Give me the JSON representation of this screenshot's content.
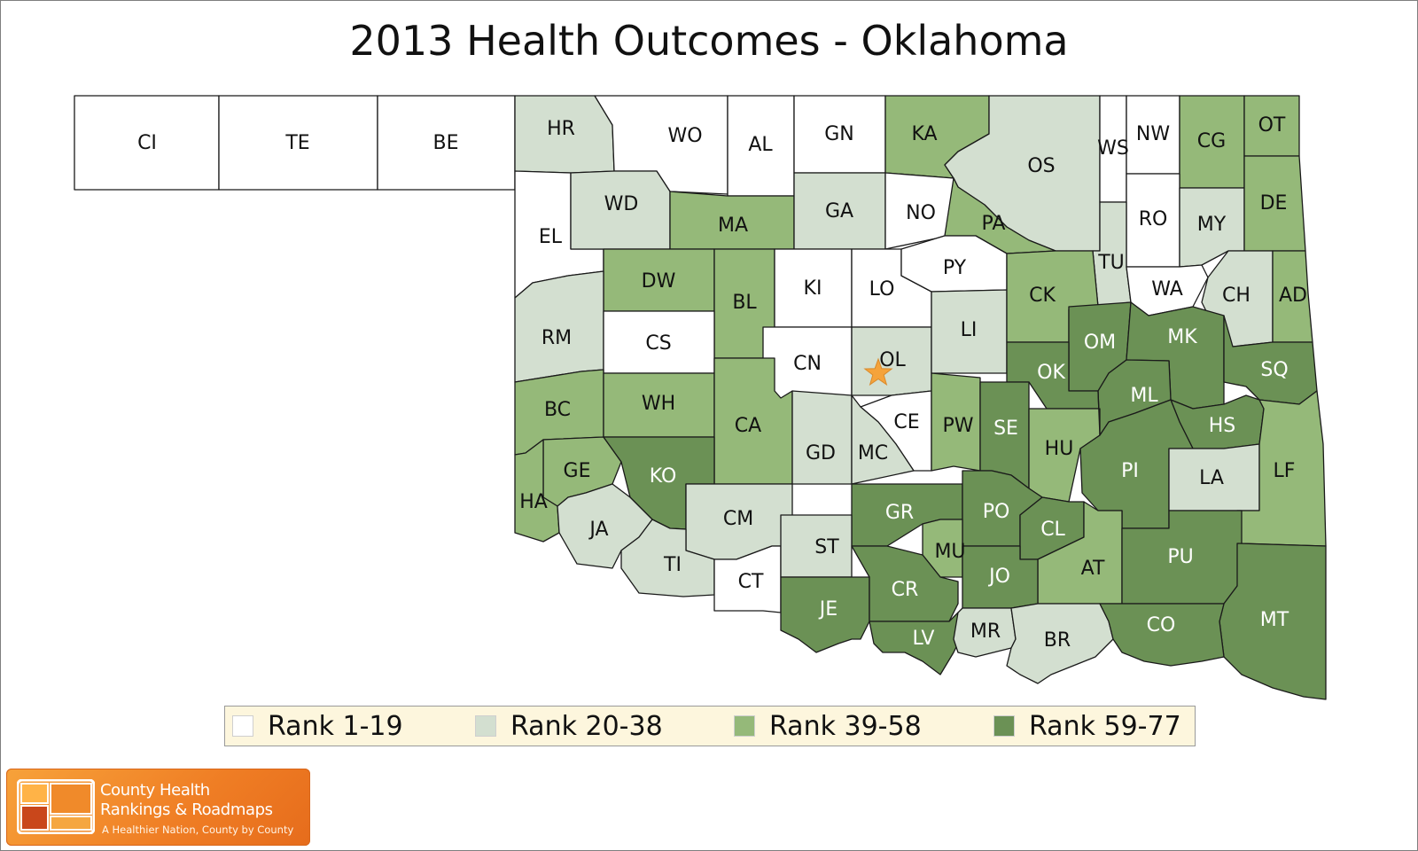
{
  "title": "2013 Health Outcomes - Oklahoma",
  "colors": {
    "rank_1_19": "#ffffff",
    "rank_20_38": "#d3dfd0",
    "rank_39_58": "#95b979",
    "rank_59_77": "#6b9155",
    "border": "#1a1a1a",
    "marker": "#f5a33b"
  },
  "legend": [
    {
      "label": "Rank 1-19",
      "color": "#ffffff"
    },
    {
      "label": "Rank 20-38",
      "color": "#d3dfd0"
    },
    {
      "label": "Rank 39-58",
      "color": "#95b979"
    },
    {
      "label": "Rank 59-77",
      "color": "#6b9155"
    }
  ],
  "map_data": {
    "type": "choropleth",
    "region": "Oklahoma",
    "marker": {
      "shape": "star",
      "county": "OL",
      "color": "#f5a33b"
    },
    "counties": [
      {
        "code": "CI",
        "tier": "Rank 1-19"
      },
      {
        "code": "TE",
        "tier": "Rank 1-19"
      },
      {
        "code": "BE",
        "tier": "Rank 1-19"
      },
      {
        "code": "HR",
        "tier": "Rank 20-38"
      },
      {
        "code": "WO",
        "tier": "Rank 1-19"
      },
      {
        "code": "AL",
        "tier": "Rank 1-19"
      },
      {
        "code": "GN",
        "tier": "Rank 1-19"
      },
      {
        "code": "KA",
        "tier": "Rank 39-58"
      },
      {
        "code": "OS",
        "tier": "Rank 20-38"
      },
      {
        "code": "WS",
        "tier": "Rank 1-19"
      },
      {
        "code": "NW",
        "tier": "Rank 1-19"
      },
      {
        "code": "CG",
        "tier": "Rank 39-58"
      },
      {
        "code": "OT",
        "tier": "Rank 39-58"
      },
      {
        "code": "EL",
        "tier": "Rank 1-19"
      },
      {
        "code": "WD",
        "tier": "Rank 20-38"
      },
      {
        "code": "MA",
        "tier": "Rank 39-58"
      },
      {
        "code": "GA",
        "tier": "Rank 20-38"
      },
      {
        "code": "NO",
        "tier": "Rank 1-19"
      },
      {
        "code": "PA",
        "tier": "Rank 39-58"
      },
      {
        "code": "RO",
        "tier": "Rank 1-19"
      },
      {
        "code": "MY",
        "tier": "Rank 20-38"
      },
      {
        "code": "DE",
        "tier": "Rank 39-58"
      },
      {
        "code": "DW",
        "tier": "Rank 39-58"
      },
      {
        "code": "BL",
        "tier": "Rank 39-58"
      },
      {
        "code": "KI",
        "tier": "Rank 1-19"
      },
      {
        "code": "LO",
        "tier": "Rank 1-19"
      },
      {
        "code": "PY",
        "tier": "Rank 1-19"
      },
      {
        "code": "TU",
        "tier": "Rank 20-38"
      },
      {
        "code": "WA",
        "tier": "Rank 1-19"
      },
      {
        "code": "CH",
        "tier": "Rank 20-38"
      },
      {
        "code": "AD",
        "tier": "Rank 39-58"
      },
      {
        "code": "RM",
        "tier": "Rank 20-38"
      },
      {
        "code": "CS",
        "tier": "Rank 1-19"
      },
      {
        "code": "CN",
        "tier": "Rank 1-19"
      },
      {
        "code": "OL",
        "tier": "Rank 20-38"
      },
      {
        "code": "LI",
        "tier": "Rank 20-38"
      },
      {
        "code": "CK",
        "tier": "Rank 39-58"
      },
      {
        "code": "OM",
        "tier": "Rank 59-77"
      },
      {
        "code": "MK",
        "tier": "Rank 59-77"
      },
      {
        "code": "OK",
        "tier": "Rank 59-77"
      },
      {
        "code": "SQ",
        "tier": "Rank 59-77"
      },
      {
        "code": "BC",
        "tier": "Rank 39-58"
      },
      {
        "code": "WH",
        "tier": "Rank 39-58"
      },
      {
        "code": "CA",
        "tier": "Rank 39-58"
      },
      {
        "code": "CE",
        "tier": "Rank 1-19"
      },
      {
        "code": "PW",
        "tier": "Rank 39-58"
      },
      {
        "code": "SE",
        "tier": "Rank 59-77"
      },
      {
        "code": "ML",
        "tier": "Rank 59-77"
      },
      {
        "code": "HS",
        "tier": "Rank 59-77"
      },
      {
        "code": "GE",
        "tier": "Rank 39-58"
      },
      {
        "code": "KO",
        "tier": "Rank 59-77"
      },
      {
        "code": "GD",
        "tier": "Rank 20-38"
      },
      {
        "code": "MC",
        "tier": "Rank 20-38"
      },
      {
        "code": "HU",
        "tier": "Rank 39-58"
      },
      {
        "code": "PI",
        "tier": "Rank 59-77"
      },
      {
        "code": "LA",
        "tier": "Rank 20-38"
      },
      {
        "code": "LF",
        "tier": "Rank 39-58"
      },
      {
        "code": "HA",
        "tier": "Rank 39-58"
      },
      {
        "code": "JA",
        "tier": "Rank 20-38"
      },
      {
        "code": "CM",
        "tier": "Rank 20-38"
      },
      {
        "code": "GR",
        "tier": "Rank 59-77"
      },
      {
        "code": "PO",
        "tier": "Rank 59-77"
      },
      {
        "code": "CL",
        "tier": "Rank 59-77"
      },
      {
        "code": "TI",
        "tier": "Rank 20-38"
      },
      {
        "code": "CT",
        "tier": "Rank 1-19"
      },
      {
        "code": "ST",
        "tier": "Rank 20-38"
      },
      {
        "code": "MU",
        "tier": "Rank 39-58"
      },
      {
        "code": "AT",
        "tier": "Rank 39-58"
      },
      {
        "code": "PU",
        "tier": "Rank 59-77"
      },
      {
        "code": "JE",
        "tier": "Rank 59-77"
      },
      {
        "code": "CR",
        "tier": "Rank 59-77"
      },
      {
        "code": "JO",
        "tier": "Rank 59-77"
      },
      {
        "code": "MT",
        "tier": "Rank 59-77"
      },
      {
        "code": "LV",
        "tier": "Rank 59-77"
      },
      {
        "code": "MR",
        "tier": "Rank 20-38"
      },
      {
        "code": "BR",
        "tier": "Rank 20-38"
      },
      {
        "code": "CO",
        "tier": "Rank 59-77"
      }
    ]
  },
  "brand": {
    "name_line1": "County Health",
    "name_line2": "Rankings & Roadmaps",
    "tagline": "A Healthier Nation, County by County"
  }
}
